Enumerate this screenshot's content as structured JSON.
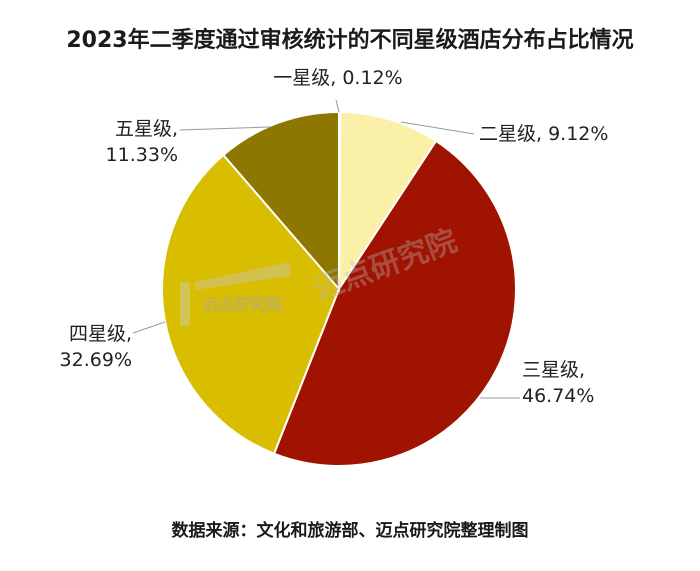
{
  "chart_data": {
    "type": "pie",
    "title": "2023年二季度通过审核统计的不同星级酒店分布占比情况",
    "source": "数据来源：文化和旅游部、迈点研究院整理制图",
    "slices": [
      {
        "name": "一星级",
        "value": 0.12,
        "value_label": "0.12%",
        "color": "#d8d0a0"
      },
      {
        "name": "二星级",
        "value": 9.12,
        "value_label": "9.12%",
        "color": "#fbf0a8"
      },
      {
        "name": "三星级",
        "value": 46.74,
        "value_label": "46.74%",
        "color": "#a01300"
      },
      {
        "name": "四星级",
        "value": 32.69,
        "value_label": "32.69%",
        "color": "#d9bd00"
      },
      {
        "name": "五星级",
        "value": 11.33,
        "value_label": "11.33%",
        "color": "#8e7700"
      }
    ]
  },
  "watermark": {
    "logo_text": "迈点研究院",
    "text": "迈点研究院"
  }
}
